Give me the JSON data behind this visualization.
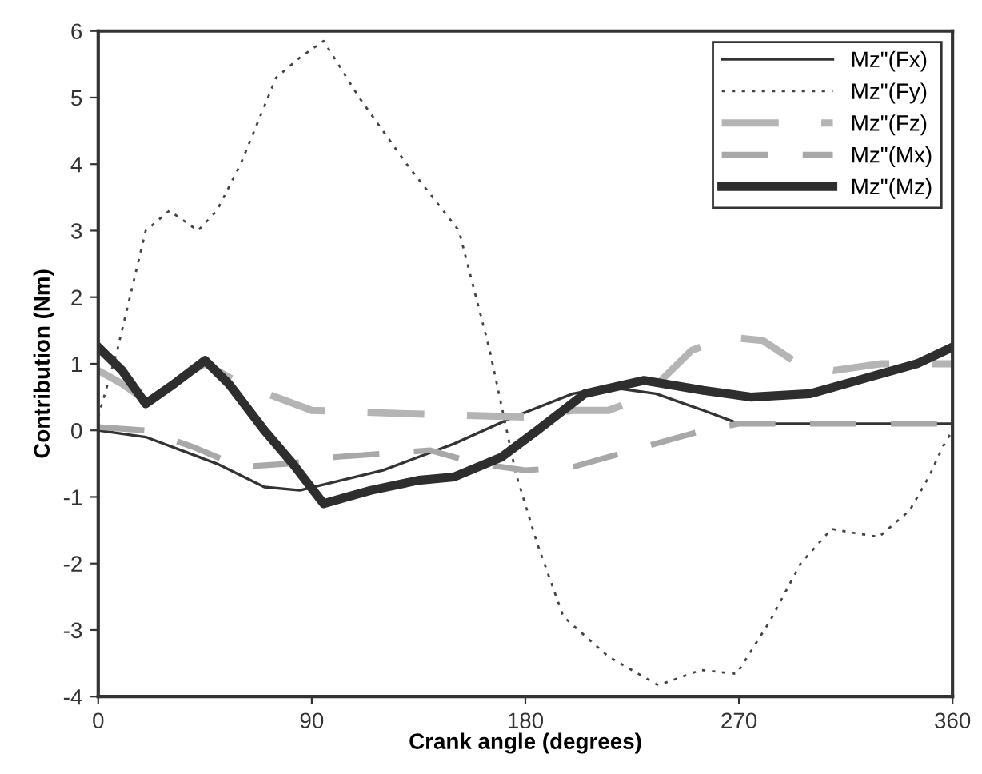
{
  "chart_data": {
    "type": "line",
    "xlabel": "Crank angle (degrees)",
    "ylabel": "Contribution (Nm)",
    "xlim": [
      0,
      360
    ],
    "xticks": [
      0,
      90,
      180,
      270,
      360
    ],
    "ylim": [
      -4,
      6
    ],
    "yticks": [
      -4,
      -3,
      -2,
      -1,
      0,
      1,
      2,
      3,
      4,
      5,
      6
    ],
    "grid": false,
    "legend": "top right",
    "marker": "none",
    "series": [
      {
        "name": "Mz\"(Fx)",
        "color": "#333333",
        "line_style": "solid",
        "x": [
          0,
          20,
          50,
          70,
          85,
          120,
          150,
          175,
          200,
          215,
          235,
          255,
          270,
          300,
          330,
          360
        ],
        "values": [
          0.0,
          -0.1,
          -0.5,
          -0.85,
          -0.9,
          -0.6,
          -0.2,
          0.2,
          0.55,
          0.65,
          0.55,
          0.3,
          0.1,
          0.1,
          0.1,
          0.1
        ]
      },
      {
        "name": "Mz\"(Fy)",
        "color": "#444444",
        "line_style": "dotted",
        "x": [
          0,
          8,
          20,
          30,
          42,
          50,
          60,
          75,
          85,
          95,
          110,
          130,
          152,
          165,
          176,
          185,
          196,
          215,
          236,
          254,
          269,
          283,
          296,
          309,
          320,
          329,
          342,
          350,
          356,
          360
        ],
        "values": [
          0.2,
          1.2,
          3.0,
          3.3,
          3.0,
          3.3,
          4.0,
          5.3,
          5.6,
          5.85,
          5.0,
          4.0,
          3.0,
          1.2,
          -0.65,
          -1.7,
          -2.8,
          -3.4,
          -3.83,
          -3.6,
          -3.66,
          -2.87,
          -2.0,
          -1.48,
          -1.55,
          -1.6,
          -1.2,
          -0.7,
          -0.24,
          0.0
        ]
      },
      {
        "name": "Mz\"(Fz)",
        "color": "#b4b4b4",
        "line_style": "dashed",
        "x": [
          0,
          10,
          20,
          35,
          45,
          60,
          90,
          130,
          180,
          200,
          215,
          230,
          250,
          265,
          280,
          295,
          310,
          330,
          360
        ],
        "values": [
          0.9,
          0.7,
          0.45,
          0.8,
          1.0,
          0.7,
          0.3,
          0.25,
          0.2,
          0.3,
          0.3,
          0.5,
          1.2,
          1.4,
          1.35,
          1.0,
          0.9,
          1.0,
          1.0
        ]
      },
      {
        "name": "Mz\"(Mx)",
        "color": "#a8a8a8",
        "line_style": "dashed",
        "x": [
          0,
          20,
          40,
          60,
          80,
          100,
          120,
          140,
          160,
          180,
          200,
          230,
          255,
          270,
          300,
          330,
          360
        ],
        "values": [
          0.05,
          0.0,
          -0.25,
          -0.55,
          -0.5,
          -0.4,
          -0.35,
          -0.3,
          -0.5,
          -0.6,
          -0.55,
          -0.25,
          0.0,
          0.1,
          0.1,
          0.1,
          0.1
        ]
      },
      {
        "name": "Mz\"(Mz)",
        "color": "#2e2e2e",
        "line_style": "solid",
        "x": [
          0,
          10,
          20,
          32,
          45,
          55,
          70,
          82,
          95,
          105,
          115,
          135,
          150,
          170,
          185,
          205,
          230,
          255,
          275,
          300,
          320,
          345,
          360
        ],
        "values": [
          1.25,
          0.9,
          0.4,
          0.7,
          1.05,
          0.7,
          0.0,
          -0.5,
          -1.1,
          -1.0,
          -0.9,
          -0.75,
          -0.7,
          -0.4,
          0.0,
          0.55,
          0.75,
          0.6,
          0.5,
          0.55,
          0.75,
          1.0,
          1.25
        ]
      }
    ]
  }
}
